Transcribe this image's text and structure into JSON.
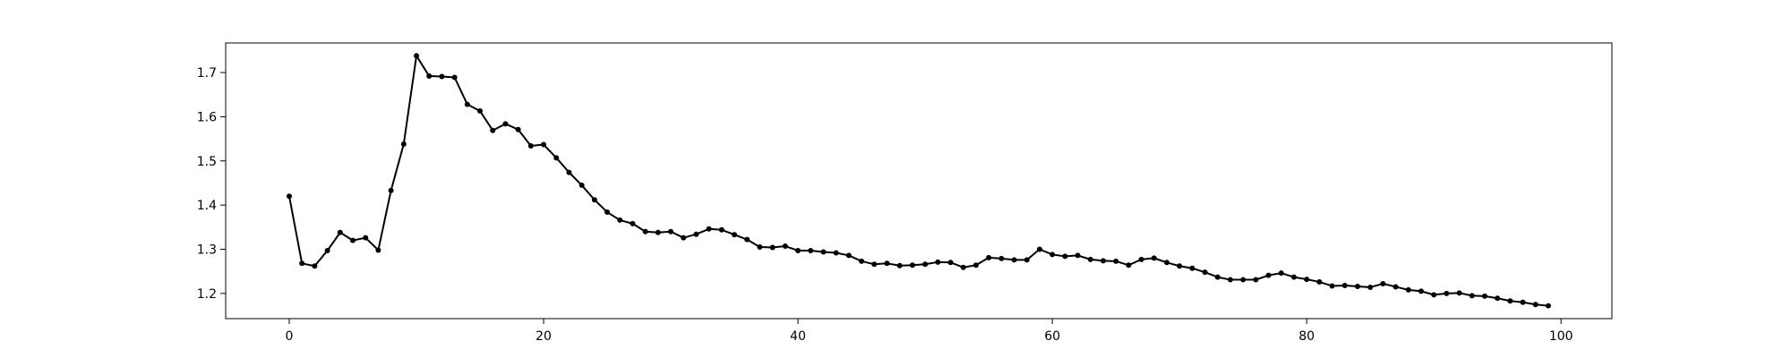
{
  "chart_data": {
    "type": "line",
    "title": "",
    "xlabel": "",
    "ylabel": "",
    "xlim": [
      -5,
      104
    ],
    "ylim": [
      1.143,
      1.767
    ],
    "xticks": [
      0,
      20,
      40,
      60,
      80,
      100
    ],
    "yticks": [
      1.2,
      1.3,
      1.4,
      1.5,
      1.6,
      1.7
    ],
    "xtick_labels": [
      "0",
      "20",
      "40",
      "60",
      "80",
      "100"
    ],
    "ytick_labels": [
      "1.2",
      "1.3",
      "1.4",
      "1.5",
      "1.6",
      "1.7"
    ],
    "grid": false,
    "legend": "none",
    "series": [
      {
        "color": "#000000",
        "marker": "circle",
        "x": [
          0,
          1,
          2,
          3,
          4,
          5,
          6,
          7,
          8,
          9,
          10,
          11,
          12,
          13,
          14,
          15,
          16,
          17,
          18,
          19,
          20,
          21,
          22,
          23,
          24,
          25,
          26,
          27,
          28,
          29,
          30,
          31,
          32,
          33,
          34,
          35,
          36,
          37,
          38,
          39,
          40,
          41,
          42,
          43,
          44,
          45,
          46,
          47,
          48,
          49,
          50,
          51,
          52,
          53,
          54,
          55,
          56,
          57,
          58,
          59,
          60,
          61,
          62,
          63,
          64,
          65,
          66,
          67,
          68,
          69,
          70,
          71,
          72,
          73,
          74,
          75,
          76,
          77,
          78,
          79,
          80,
          81,
          82,
          83,
          84,
          85,
          86,
          87,
          88,
          89,
          90,
          91,
          92,
          93,
          94,
          95,
          96,
          97,
          98,
          99
        ],
        "values": [
          1.42,
          1.268,
          1.262,
          1.297,
          1.338,
          1.32,
          1.326,
          1.298,
          1.433,
          1.538,
          1.738,
          1.692,
          1.691,
          1.689,
          1.628,
          1.613,
          1.569,
          1.584,
          1.571,
          1.534,
          1.537,
          1.507,
          1.474,
          1.445,
          1.412,
          1.384,
          1.366,
          1.358,
          1.34,
          1.338,
          1.34,
          1.326,
          1.334,
          1.346,
          1.344,
          1.333,
          1.322,
          1.305,
          1.304,
          1.307,
          1.297,
          1.297,
          1.294,
          1.292,
          1.286,
          1.273,
          1.266,
          1.268,
          1.263,
          1.264,
          1.266,
          1.271,
          1.27,
          1.259,
          1.264,
          1.281,
          1.279,
          1.276,
          1.276,
          1.3,
          1.288,
          1.284,
          1.286,
          1.277,
          1.274,
          1.273,
          1.264,
          1.277,
          1.28,
          1.27,
          1.262,
          1.257,
          1.248,
          1.237,
          1.231,
          1.231,
          1.231,
          1.241,
          1.246,
          1.237,
          1.232,
          1.226,
          1.217,
          1.218,
          1.216,
          1.214,
          1.222,
          1.215,
          1.208,
          1.205,
          1.197,
          1.2,
          1.201,
          1.195,
          1.194,
          1.189,
          1.183,
          1.18,
          1.175,
          1.172
        ]
      }
    ]
  }
}
